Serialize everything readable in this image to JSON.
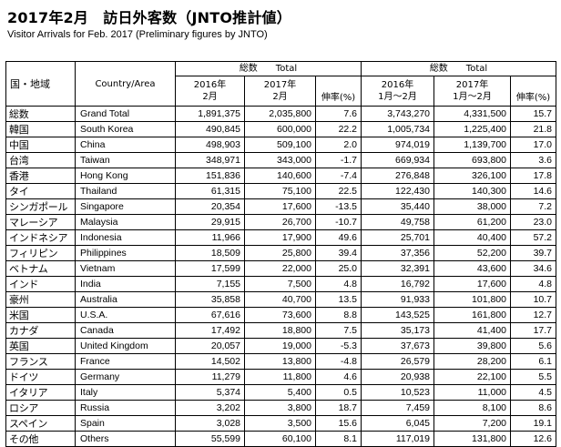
{
  "title": "2017年2月　訪日外客数（JNTO推計値）",
  "subtitle": "Visitor Arrivals for Feb. 2017 (Preliminary figures by JNTO)",
  "headers": {
    "region_jp": "国・地域",
    "country_en": "Country/Area",
    "group1": "総数　　Total",
    "group2": "総数　　Total",
    "col_2016_feb_year": "2016年",
    "col_2016_feb_period": "2月",
    "col_2017_feb_year": "2017年",
    "col_2017_feb_period": "2月",
    "col_rate1": "伸率(%)",
    "col_2016_cum_year": "2016年",
    "col_2016_cum_period": "1月～2月",
    "col_2017_cum_year": "2017年",
    "col_2017_cum_period": "1月～2月",
    "col_rate2": "伸率(%)"
  },
  "rows": [
    {
      "jp": "総数",
      "en": "Grand Total",
      "v2016": "1,891,375",
      "v2017": "2,035,800",
      "rate": "7.6",
      "c2016": "3,743,270",
      "c2017": "4,331,500",
      "crate": "15.7"
    },
    {
      "jp": "韓国",
      "en": "South Korea",
      "v2016": "490,845",
      "v2017": "600,000",
      "rate": "22.2",
      "c2016": "1,005,734",
      "c2017": "1,225,400",
      "crate": "21.8"
    },
    {
      "jp": "中国",
      "en": "China",
      "v2016": "498,903",
      "v2017": "509,100",
      "rate": "2.0",
      "c2016": "974,019",
      "c2017": "1,139,700",
      "crate": "17.0"
    },
    {
      "jp": "台湾",
      "en": "Taiwan",
      "v2016": "348,971",
      "v2017": "343,000",
      "rate": "-1.7",
      "c2016": "669,934",
      "c2017": "693,800",
      "crate": "3.6"
    },
    {
      "jp": "香港",
      "en": "Hong Kong",
      "v2016": "151,836",
      "v2017": "140,600",
      "rate": "-7.4",
      "c2016": "276,848",
      "c2017": "326,100",
      "crate": "17.8"
    },
    {
      "jp": "タイ",
      "en": "Thailand",
      "v2016": "61,315",
      "v2017": "75,100",
      "rate": "22.5",
      "c2016": "122,430",
      "c2017": "140,300",
      "crate": "14.6"
    },
    {
      "jp": "シンガポール",
      "en": "Singapore",
      "v2016": "20,354",
      "v2017": "17,600",
      "rate": "-13.5",
      "c2016": "35,440",
      "c2017": "38,000",
      "crate": "7.2"
    },
    {
      "jp": "マレーシア",
      "en": "Malaysia",
      "v2016": "29,915",
      "v2017": "26,700",
      "rate": "-10.7",
      "c2016": "49,758",
      "c2017": "61,200",
      "crate": "23.0"
    },
    {
      "jp": "インドネシア",
      "en": "Indonesia",
      "v2016": "11,966",
      "v2017": "17,900",
      "rate": "49.6",
      "c2016": "25,701",
      "c2017": "40,400",
      "crate": "57.2"
    },
    {
      "jp": "フィリピン",
      "en": "Philippines",
      "v2016": "18,509",
      "v2017": "25,800",
      "rate": "39.4",
      "c2016": "37,356",
      "c2017": "52,200",
      "crate": "39.7"
    },
    {
      "jp": "ベトナム",
      "en": "Vietnam",
      "v2016": "17,599",
      "v2017": "22,000",
      "rate": "25.0",
      "c2016": "32,391",
      "c2017": "43,600",
      "crate": "34.6"
    },
    {
      "jp": "インド",
      "en": "India",
      "v2016": "7,155",
      "v2017": "7,500",
      "rate": "4.8",
      "c2016": "16,792",
      "c2017": "17,600",
      "crate": "4.8"
    },
    {
      "jp": "豪州",
      "en": "Australia",
      "v2016": "35,858",
      "v2017": "40,700",
      "rate": "13.5",
      "c2016": "91,933",
      "c2017": "101,800",
      "crate": "10.7"
    },
    {
      "jp": "米国",
      "en": "U.S.A.",
      "v2016": "67,616",
      "v2017": "73,600",
      "rate": "8.8",
      "c2016": "143,525",
      "c2017": "161,800",
      "crate": "12.7"
    },
    {
      "jp": "カナダ",
      "en": "Canada",
      "v2016": "17,492",
      "v2017": "18,800",
      "rate": "7.5",
      "c2016": "35,173",
      "c2017": "41,400",
      "crate": "17.7"
    },
    {
      "jp": "英国",
      "en": "United Kingdom",
      "v2016": "20,057",
      "v2017": "19,000",
      "rate": "-5.3",
      "c2016": "37,673",
      "c2017": "39,800",
      "crate": "5.6"
    },
    {
      "jp": "フランス",
      "en": "France",
      "v2016": "14,502",
      "v2017": "13,800",
      "rate": "-4.8",
      "c2016": "26,579",
      "c2017": "28,200",
      "crate": "6.1"
    },
    {
      "jp": "ドイツ",
      "en": "Germany",
      "v2016": "11,279",
      "v2017": "11,800",
      "rate": "4.6",
      "c2016": "20,938",
      "c2017": "22,100",
      "crate": "5.5"
    },
    {
      "jp": "イタリア",
      "en": "Italy",
      "v2016": "5,374",
      "v2017": "5,400",
      "rate": "0.5",
      "c2016": "10,523",
      "c2017": "11,000",
      "crate": "4.5"
    },
    {
      "jp": "ロシア",
      "en": "Russia",
      "v2016": "3,202",
      "v2017": "3,800",
      "rate": "18.7",
      "c2016": "7,459",
      "c2017": "8,100",
      "crate": "8.6"
    },
    {
      "jp": "スペイン",
      "en": "Spain",
      "v2016": "3,028",
      "v2017": "3,500",
      "rate": "15.6",
      "c2016": "6,045",
      "c2017": "7,200",
      "crate": "19.1"
    },
    {
      "jp": "その他",
      "en": "Others",
      "v2016": "55,599",
      "v2017": "60,100",
      "rate": "8.1",
      "c2016": "117,019",
      "c2017": "131,800",
      "crate": "12.6"
    }
  ]
}
